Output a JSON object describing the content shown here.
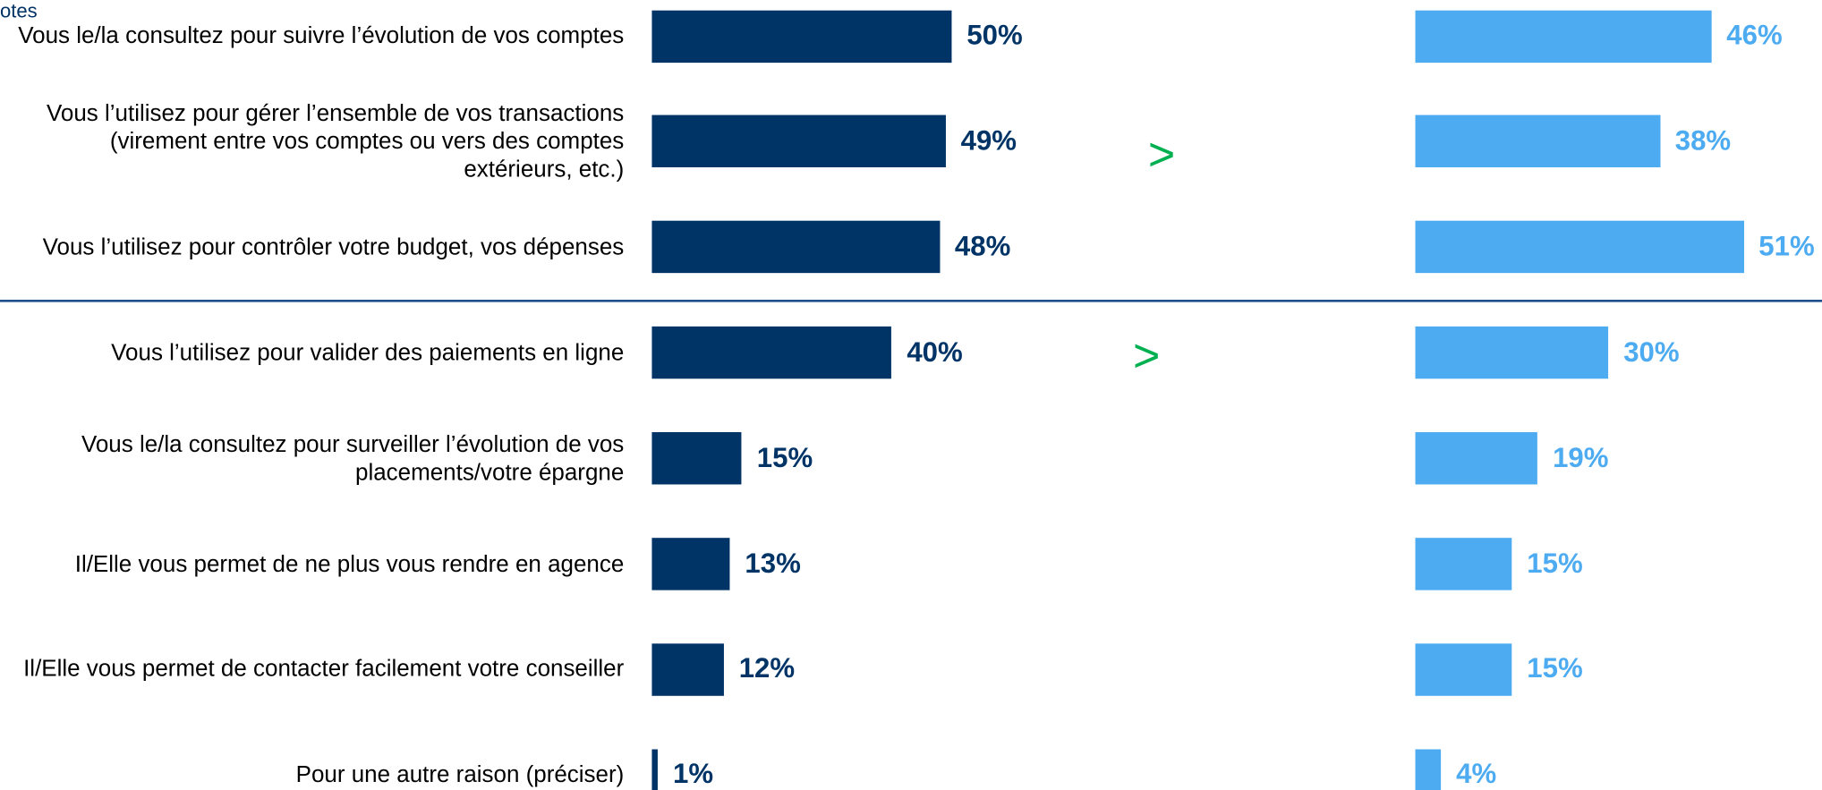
{
  "chart_data": {
    "type": "bar",
    "orientation": "horizontal",
    "note": "otes",
    "categories": [
      "Vous le/la consultez pour suivre l’évolution de vos comptes",
      "Vous l’utilisez pour gérer l’ensemble de vos transactions (virement entre vos comptes ou vers des comptes extérieurs, etc.)",
      "Vous l’utilisez pour contrôler votre budget, vos dépenses",
      "Vous l’utilisez pour valider des paiements en ligne",
      "Vous le/la consultez pour surveiller l’évolution de vos placements/votre épargne",
      "Il/Elle vous permet de ne plus vous rendre en agence",
      "Il/Elle vous permet de contacter facilement votre conseiller",
      "Pour une autre raison (préciser)"
    ],
    "series": [
      {
        "color": "#003366",
        "xlim": [
          0,
          100
        ],
        "values": [
          50,
          49,
          48,
          40,
          15,
          13,
          12,
          1
        ],
        "value_labels": [
          "50%",
          "49%",
          "48%",
          "40%",
          "15%",
          "13%",
          "12%",
          "1%"
        ]
      },
      {
        "color": "#4dabf2",
        "xlim": [
          0,
          100
        ],
        "values": [
          46,
          38,
          51,
          30,
          19,
          15,
          15,
          4
        ],
        "value_labels": [
          "46%",
          "38%",
          "51%",
          "30%",
          "19%",
          "15%",
          "15%",
          "4%"
        ]
      }
    ],
    "annotations": [
      ">",
      ">"
    ],
    "annotation_color": "#00b050"
  }
}
